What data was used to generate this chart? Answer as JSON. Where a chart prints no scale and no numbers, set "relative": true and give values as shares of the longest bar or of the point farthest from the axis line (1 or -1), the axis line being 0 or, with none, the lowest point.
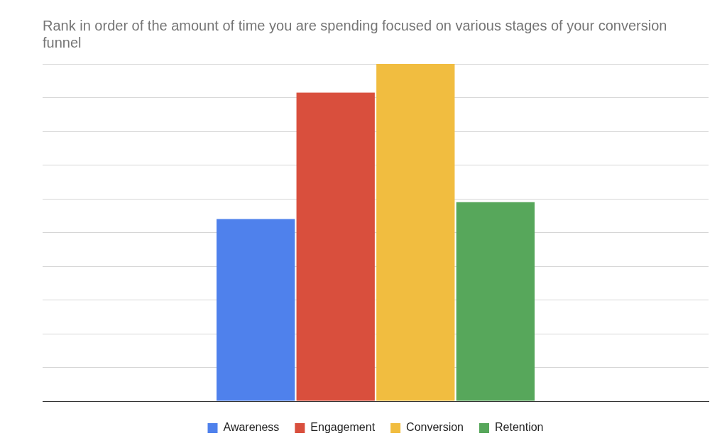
{
  "chart_data": {
    "type": "bar",
    "title": "Rank in order of the amount of time you are spending focused on various stages of your conversion funnel",
    "categories": [
      null
    ],
    "relative": true,
    "grid": "y",
    "legend": "bottom",
    "series": [
      {
        "name": "Awareness",
        "color": "#4f81ec",
        "values": [
          0.54
        ]
      },
      {
        "name": "Engagement",
        "color": "#d94f3d",
        "values": [
          0.915
        ]
      },
      {
        "name": "Conversion",
        "color": "#f1bd40",
        "values": [
          1
        ]
      },
      {
        "name": "Retention",
        "color": "#57a75b",
        "values": [
          0.59
        ]
      }
    ]
  }
}
